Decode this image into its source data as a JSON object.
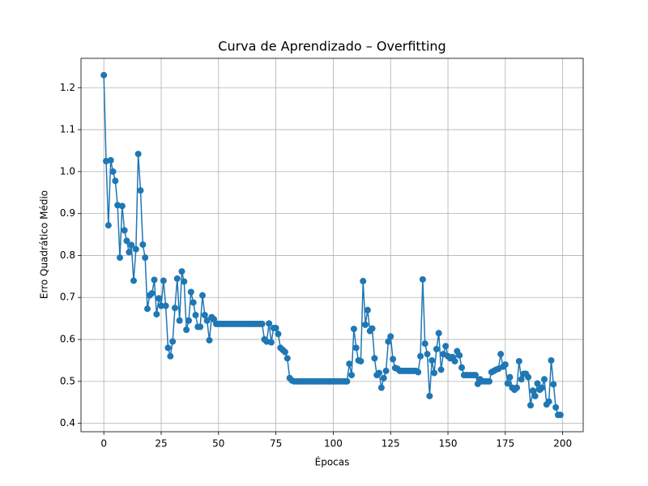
{
  "chart_data": {
    "type": "line",
    "title": "Curva de Aprendizado – Overfitting",
    "xlabel": "Épocas",
    "ylabel": "Erro Quadrático Médio",
    "color": "#1f77b4",
    "grid": true,
    "x": [
      0,
      1,
      2,
      3,
      4,
      5,
      6,
      7,
      8,
      9,
      10,
      11,
      12,
      13,
      14,
      15,
      16,
      17,
      18,
      19,
      20,
      21,
      22,
      23,
      24,
      25,
      26,
      27,
      28,
      29,
      30,
      31,
      32,
      33,
      34,
      35,
      36,
      37,
      38,
      39,
      40,
      41,
      42,
      43,
      44,
      45,
      46,
      47,
      48,
      49,
      50,
      51,
      52,
      53,
      54,
      55,
      56,
      57,
      58,
      59,
      60,
      61,
      62,
      63,
      64,
      65,
      66,
      67,
      68,
      69,
      70,
      71,
      72,
      73,
      74,
      75,
      76,
      77,
      78,
      79,
      80,
      81,
      82,
      83,
      84,
      85,
      86,
      87,
      88,
      89,
      90,
      91,
      92,
      93,
      94,
      95,
      96,
      97,
      98,
      99,
      100,
      101,
      102,
      103,
      104,
      105,
      106,
      107,
      108,
      109,
      110,
      111,
      112,
      113,
      114,
      115,
      116,
      117,
      118,
      119,
      120,
      121,
      122,
      123,
      124,
      125,
      126,
      127,
      128,
      129,
      130,
      131,
      132,
      133,
      134,
      135,
      136,
      137,
      138,
      139,
      140,
      141,
      142,
      143,
      144,
      145,
      146,
      147,
      148,
      149,
      150,
      151,
      152,
      153,
      154,
      155,
      156,
      157,
      158,
      159,
      160,
      161,
      162,
      163,
      164,
      165,
      166,
      167,
      168,
      169,
      170,
      171,
      172,
      173,
      174,
      175,
      176,
      177,
      178,
      179,
      180,
      181,
      182,
      183,
      184,
      185,
      186,
      187,
      188,
      189,
      190,
      191,
      192,
      193,
      194,
      195,
      196,
      197,
      198,
      199
    ],
    "values": [
      1.23,
      1.025,
      0.872,
      1.027,
      1.0,
      0.978,
      0.92,
      0.795,
      0.918,
      0.86,
      0.835,
      0.808,
      0.825,
      0.74,
      0.815,
      1.042,
      0.955,
      0.826,
      0.795,
      0.673,
      0.705,
      0.71,
      0.742,
      0.66,
      0.698,
      0.68,
      0.74,
      0.68,
      0.58,
      0.56,
      0.595,
      0.675,
      0.745,
      0.645,
      0.762,
      0.738,
      0.623,
      0.645,
      0.713,
      0.688,
      0.658,
      0.63,
      0.63,
      0.705,
      0.658,
      0.645,
      0.598,
      0.653,
      0.648,
      0.637,
      0.637,
      0.637,
      0.637,
      0.637,
      0.637,
      0.637,
      0.637,
      0.637,
      0.637,
      0.637,
      0.637,
      0.637,
      0.637,
      0.637,
      0.637,
      0.637,
      0.637,
      0.637,
      0.637,
      0.637,
      0.6,
      0.595,
      0.638,
      0.593,
      0.627,
      0.627,
      0.613,
      0.58,
      0.575,
      0.57,
      0.555,
      0.508,
      0.502,
      0.5,
      0.5,
      0.5,
      0.5,
      0.5,
      0.5,
      0.5,
      0.5,
      0.5,
      0.5,
      0.5,
      0.5,
      0.5,
      0.5,
      0.5,
      0.5,
      0.5,
      0.5,
      0.5,
      0.5,
      0.5,
      0.5,
      0.5,
      0.5,
      0.542,
      0.515,
      0.625,
      0.58,
      0.55,
      0.548,
      0.739,
      0.635,
      0.67,
      0.62,
      0.626,
      0.555,
      0.515,
      0.52,
      0.485,
      0.508,
      0.525,
      0.595,
      0.607,
      0.553,
      0.532,
      0.53,
      0.525,
      0.525,
      0.525,
      0.525,
      0.525,
      0.525,
      0.525,
      0.525,
      0.522,
      0.56,
      0.743,
      0.59,
      0.565,
      0.465,
      0.55,
      0.52,
      0.577,
      0.615,
      0.528,
      0.565,
      0.584,
      0.56,
      0.555,
      0.558,
      0.548,
      0.572,
      0.562,
      0.533,
      0.515,
      0.515,
      0.515,
      0.515,
      0.515,
      0.515,
      0.494,
      0.505,
      0.5,
      0.5,
      0.5,
      0.5,
      0.522,
      0.525,
      0.528,
      0.53,
      0.565,
      0.535,
      0.54,
      0.495,
      0.51,
      0.485,
      0.48,
      0.485,
      0.548,
      0.505,
      0.518,
      0.518,
      0.51,
      0.443,
      0.478,
      0.465,
      0.495,
      0.48,
      0.485,
      0.505,
      0.445,
      0.452,
      0.55,
      0.493,
      0.438,
      0.42,
      0.42
    ],
    "xlim": [
      -9.95,
      208.95
    ],
    "xticks": [
      0,
      25,
      50,
      75,
      100,
      125,
      150,
      175,
      200
    ],
    "ylim": [
      0.38,
      1.27
    ],
    "yticks": [
      0.4,
      0.5,
      0.6,
      0.7,
      0.8,
      0.9,
      {
        "value": 1,
        "label": "1.0"
      },
      1.1,
      1.2
    ]
  }
}
